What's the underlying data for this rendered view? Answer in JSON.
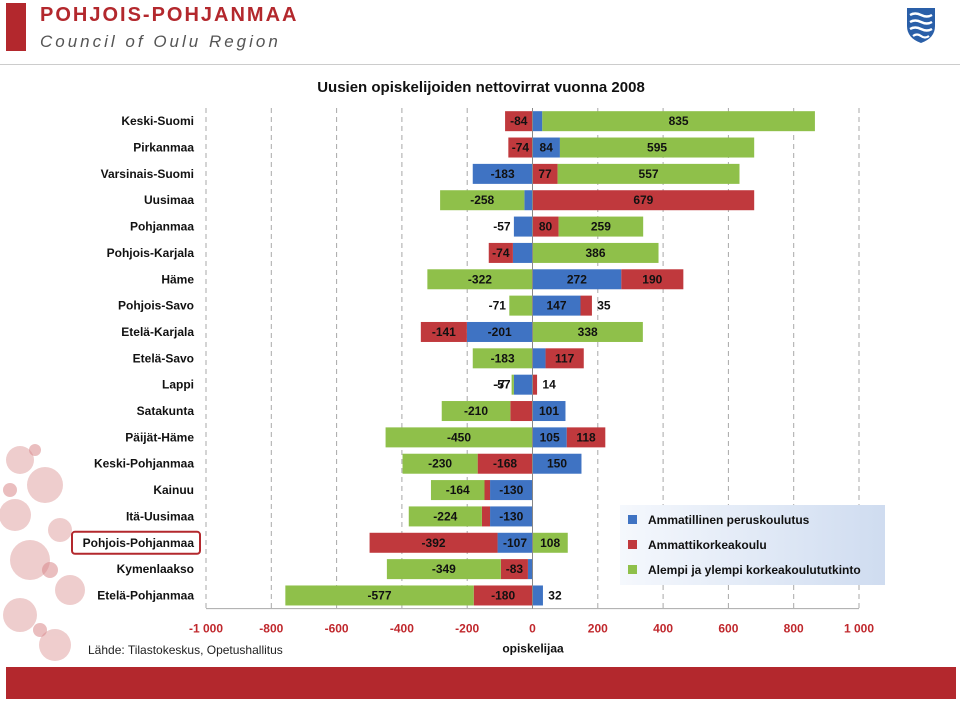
{
  "header": {
    "brand_title": "POHJOIS-POHJANMAA",
    "brand_subtitle": "Council of Oulu Region",
    "crest_icon": "coat-of-arms-icon"
  },
  "footer": {
    "source": "Lähde: Tilastokeskus, Opetushallitus"
  },
  "colors": {
    "accent": "#b3282d",
    "series_blue": "#3f73c3",
    "series_red": "#c0393d",
    "series_green": "#8fc04a",
    "tick_red": "#c0282d"
  },
  "chart_data": {
    "type": "bar",
    "orientation": "horizontal",
    "stacked": "diverging",
    "title": "Uusien opiskelijoiden nettovirrat vuonna 2008",
    "xlabel": "opiskelijaa",
    "xlim": [
      -1000,
      1000
    ],
    "xticks": [
      -1000,
      -800,
      -600,
      -400,
      -200,
      0,
      200,
      400,
      600,
      800,
      1000
    ],
    "xtick_labels": [
      "-1 000",
      "-800",
      "-600",
      "-400",
      "-200",
      "0",
      "200",
      "400",
      "600",
      "800",
      "1 000"
    ],
    "grid": "vertical-dashed",
    "legend_position": "bottom-right",
    "highlighted_category": "Pohjois-Pohjanmaa",
    "categories": [
      "Keski-Suomi",
      "Pirkanmaa",
      "Varsinais-Suomi",
      "Uusimaa",
      "Pohjanmaa",
      "Pohjois-Karjala",
      "Häme",
      "Pohjois-Savo",
      "Etelä-Karjala",
      "Etelä-Savo",
      "Lappi",
      "Satakunta",
      "Päijät-Häme",
      "Keski-Pohjanmaa",
      "Kainuu",
      "Itä-Uusimaa",
      "Pohjois-Pohjanmaa",
      "Kymenlaakso",
      "Etelä-Pohjanmaa"
    ],
    "series": [
      {
        "name": "Ammatillinen peruskoulutus",
        "color": "#3f73c3",
        "values": [
          30,
          84,
          -183,
          -25,
          -57,
          -60,
          272,
          147,
          -201,
          40,
          -57,
          101,
          105,
          150,
          -130,
          -130,
          -107,
          -14,
          32
        ]
      },
      {
        "name": "Ammattikorkeakoulu",
        "color": "#c0393d",
        "values": [
          -84,
          -74,
          77,
          679,
          80,
          -74,
          190,
          35,
          -141,
          117,
          14,
          -68,
          118,
          -168,
          -17,
          -25,
          -392,
          -83,
          -180
        ]
      },
      {
        "name": "Alempi ja ylempi korkeakoulututkinto",
        "color": "#8fc04a",
        "values": [
          835,
          595,
          557,
          -258,
          259,
          386,
          -322,
          -71,
          338,
          -183,
          -7,
          -210,
          -450,
          -230,
          -164,
          -224,
          108,
          -349,
          -577
        ]
      }
    ]
  }
}
